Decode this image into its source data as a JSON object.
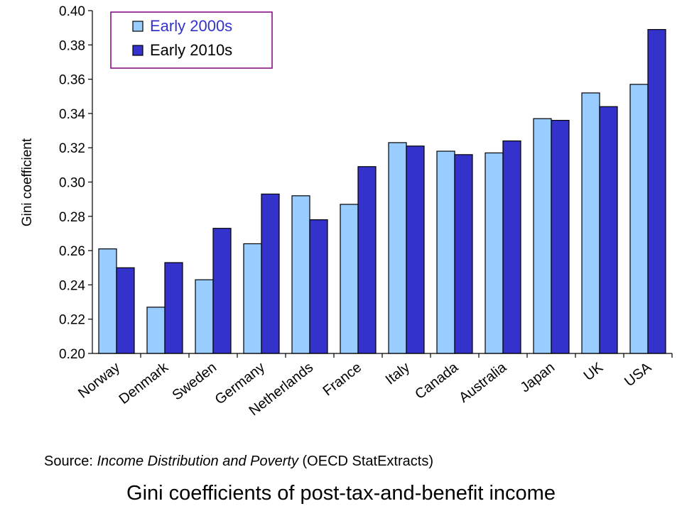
{
  "chart_data": {
    "type": "bar",
    "title": "",
    "xlabel": "",
    "ylabel": "Gini coefficient",
    "ylim": [
      0.2,
      0.4
    ],
    "yticks": [
      "0.20",
      "0.22",
      "0.24",
      "0.26",
      "0.28",
      "0.30",
      "0.32",
      "0.34",
      "0.36",
      "0.38",
      "0.40"
    ],
    "categories": [
      "Norway",
      "Denmark",
      "Sweden",
      "Germany",
      "Netherlands",
      "France",
      "Italy",
      "Canada",
      "Australia",
      "Japan",
      "UK",
      "USA"
    ],
    "series": [
      {
        "name": "Early 2000s",
        "color": "#99ccff",
        "values": [
          0.261,
          0.227,
          0.243,
          0.264,
          0.292,
          0.287,
          0.323,
          0.318,
          0.317,
          0.337,
          0.352,
          0.357
        ]
      },
      {
        "name": "Early 2010s",
        "color": "#3333cc",
        "values": [
          0.25,
          0.253,
          0.273,
          0.293,
          0.278,
          0.309,
          0.321,
          0.316,
          0.324,
          0.336,
          0.344,
          0.389
        ]
      }
    ],
    "legend_position": "top-left",
    "legend_border_color": "#800080",
    "legend_text_colors": [
      "#3333cc",
      "#000000"
    ],
    "grid": false
  },
  "source": {
    "prefix": "Source: ",
    "title": "Income Distribution and Poverty",
    "suffix": " (OECD StatExtracts)"
  },
  "caption": "Gini coefficients of post-tax-and-benefit income"
}
